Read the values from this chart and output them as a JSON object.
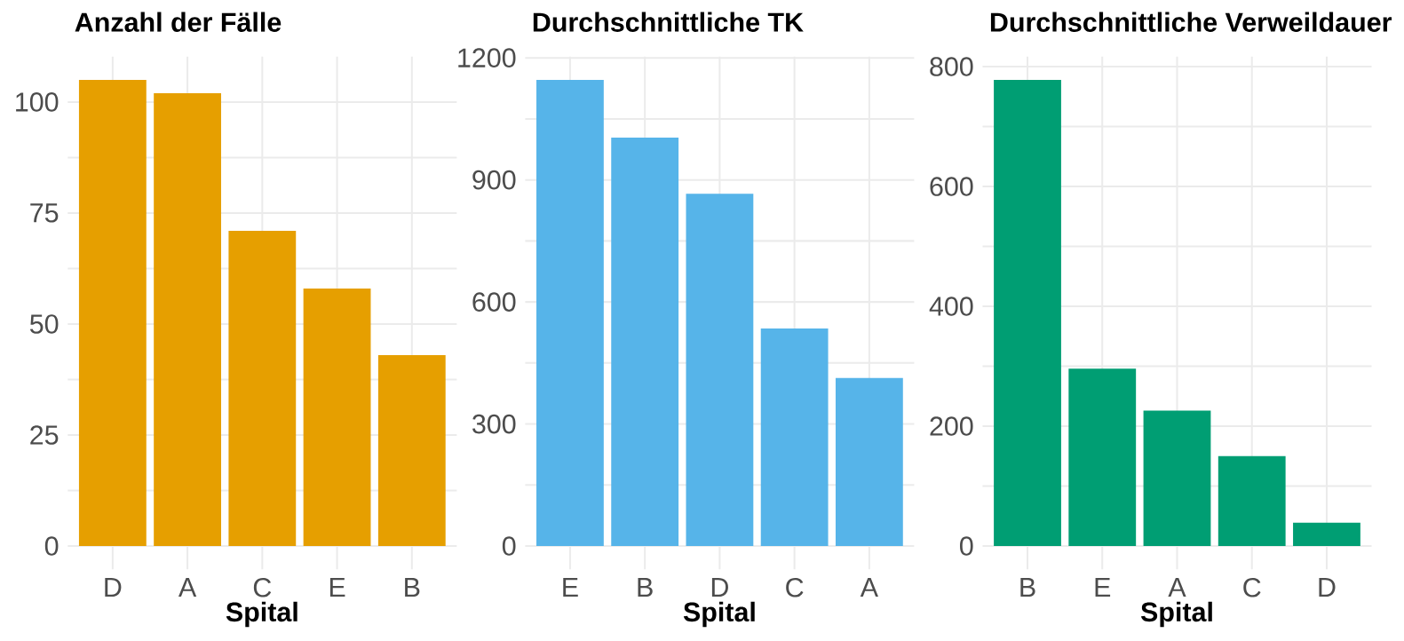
{
  "chart_data": [
    {
      "type": "bar",
      "title": "Anzahl der Fälle",
      "xlabel": "Spital",
      "categories": [
        "D",
        "A",
        "C",
        "E",
        "B"
      ],
      "values": [
        105,
        102,
        71,
        58,
        43
      ],
      "color": "#e69f00",
      "ylim": [
        -5.25,
        110.25
      ],
      "yticks": [
        0,
        {
          "value": 12.5,
          "label": null
        },
        25,
        {
          "value": 37.5,
          "label": null
        },
        50,
        {
          "value": 62.5,
          "label": null
        },
        75,
        {
          "value": 87.5,
          "label": null
        },
        100
      ],
      "grid": true
    },
    {
      "type": "bar",
      "title": "Durchschnittliche TK",
      "xlabel": "Spital",
      "categories": [
        "E",
        "B",
        "D",
        "C",
        "A"
      ],
      "values": [
        1146,
        1004,
        866,
        535,
        413
      ],
      "color": "#56b4e9",
      "ylim": [
        -57.3,
        1203.3
      ],
      "yticks": [
        0,
        {
          "value": 150,
          "label": null
        },
        300,
        {
          "value": 450,
          "label": null
        },
        600,
        {
          "value": 750,
          "label": null
        },
        900,
        {
          "value": 1050,
          "label": null
        },
        1200
      ],
      "grid": true
    },
    {
      "type": "bar",
      "title": "Durchschnittliche Verweildauer",
      "xlabel": "Spital",
      "categories": [
        "B",
        "E",
        "A",
        "C",
        "D"
      ],
      "values": [
        778,
        296,
        226,
        150,
        39
      ],
      "color": "#009e73",
      "ylim": [
        -38.9,
        816.9
      ],
      "yticks": [
        0,
        {
          "value": 100,
          "label": null
        },
        200,
        {
          "value": 300,
          "label": null
        },
        400,
        {
          "value": 500,
          "label": null
        },
        600,
        {
          "value": 700,
          "label": null
        },
        800
      ],
      "grid": true
    }
  ]
}
